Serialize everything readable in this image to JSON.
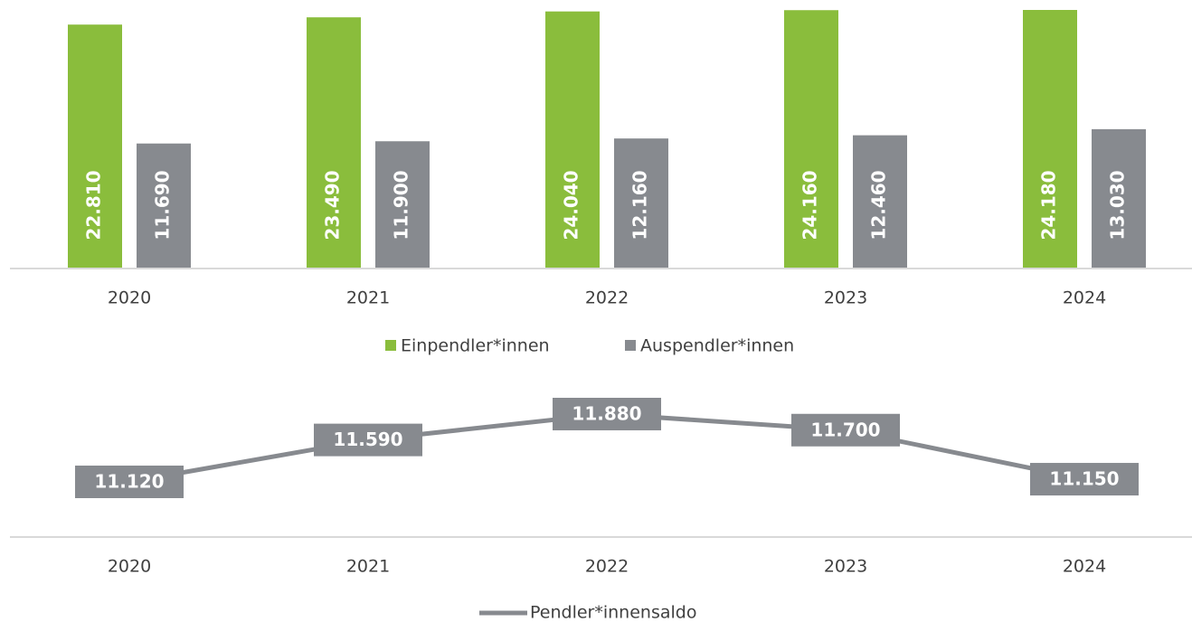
{
  "chart_data": [
    {
      "type": "bar",
      "categories": [
        "2020",
        "2021",
        "2022",
        "2023",
        "2024"
      ],
      "series": [
        {
          "name": "Einpendler*innen",
          "color": "#8abd3c",
          "values": [
            22810,
            23490,
            24040,
            24160,
            24180
          ],
          "value_labels": [
            "22.810",
            "23.490",
            "24.040",
            "24.160",
            "24.180"
          ]
        },
        {
          "name": "Auspendler*innen",
          "color": "#878a8f",
          "values": [
            11690,
            11900,
            12160,
            12460,
            13030
          ],
          "value_labels": [
            "11.690",
            "11.900",
            "12.160",
            "12.460",
            "13.030"
          ]
        }
      ]
    },
    {
      "type": "line",
      "categories": [
        "2020",
        "2021",
        "2022",
        "2023",
        "2024"
      ],
      "series": [
        {
          "name": "Pendler*innensaldo",
          "color": "#878a8f",
          "values": [
            11120,
            11590,
            11880,
            11700,
            11150
          ],
          "value_labels": [
            "11.120",
            "11.590",
            "11.880",
            "11.700",
            "11.150"
          ]
        }
      ]
    }
  ]
}
